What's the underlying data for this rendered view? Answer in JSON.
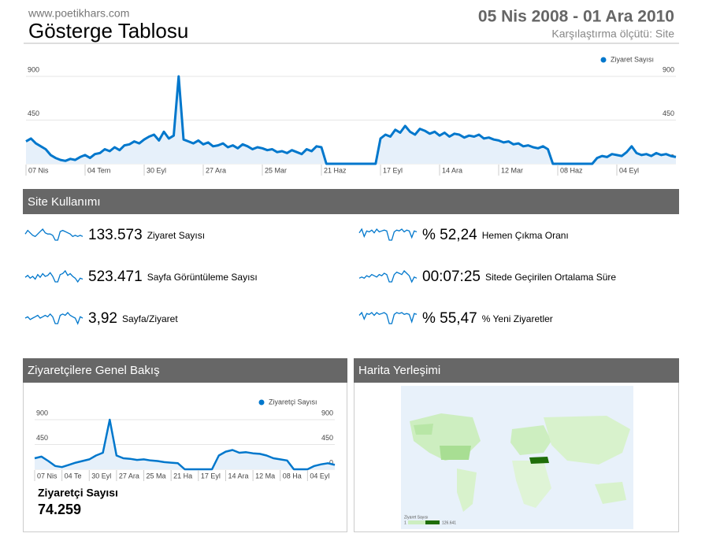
{
  "header": {
    "site": "www.poetikhars.com",
    "title": "Gösterge Tablosu",
    "date_range": "05 Nis 2008 - 01 Ara 2010",
    "comparison": "Karşılaştırma ölçütü: Site"
  },
  "chart_data": [
    {
      "type": "line",
      "ylim": [
        0,
        900
      ],
      "yticks": [
        0,
        450,
        900
      ],
      "grid": true,
      "xticks": [
        {
          "value": 0,
          "label": "07 Nis"
        },
        {
          "value": 12,
          "label": "04 Tem"
        },
        {
          "value": 24,
          "label": "30 Eyl"
        },
        {
          "value": 36,
          "label": "27 Ara"
        },
        {
          "value": 48,
          "label": "25 Mar"
        },
        {
          "value": 60,
          "label": "21 Haz"
        },
        {
          "value": 72,
          "label": "17 Eyl"
        },
        {
          "value": 84,
          "label": "14 Ara"
        },
        {
          "value": 96,
          "label": "12 Mar"
        },
        {
          "value": 108,
          "label": "08 Haz"
        },
        {
          "value": 120,
          "label": "04 Eyl"
        }
      ],
      "series": [
        {
          "name": "Ziyaret Sayısı",
          "color": "#0077cc",
          "values": [
            230,
            260,
            210,
            180,
            150,
            90,
            60,
            40,
            30,
            50,
            40,
            70,
            90,
            60,
            100,
            110,
            150,
            130,
            170,
            140,
            190,
            200,
            230,
            210,
            250,
            280,
            300,
            240,
            330,
            260,
            290,
            900,
            250,
            230,
            210,
            240,
            200,
            220,
            180,
            190,
            210,
            170,
            190,
            160,
            200,
            180,
            150,
            170,
            160,
            140,
            150,
            120,
            130,
            110,
            140,
            120,
            100,
            150,
            130,
            180,
            170,
            0,
            0,
            0,
            0,
            0,
            0,
            0,
            0,
            0,
            0,
            0,
            260,
            300,
            280,
            350,
            320,
            390,
            330,
            300,
            360,
            340,
            310,
            330,
            290,
            320,
            280,
            310,
            300,
            270,
            290,
            280,
            300,
            260,
            270,
            250,
            240,
            220,
            230,
            200,
            210,
            180,
            190,
            170,
            160,
            180,
            150,
            0,
            0,
            0,
            0,
            0,
            0,
            0,
            0,
            0,
            60,
            80,
            70,
            100,
            90,
            80,
            120,
            180,
            110,
            90,
            100,
            80,
            110,
            90,
            100,
            80,
            70
          ]
        }
      ]
    },
    {
      "type": "line",
      "ylim": [
        0,
        900
      ],
      "yticks": [
        0,
        450,
        900
      ],
      "grid": true,
      "xticks": [
        {
          "value": 0,
          "label": "07 Nis"
        },
        {
          "value": 4,
          "label": "04 Te"
        },
        {
          "value": 8,
          "label": "30 Eyl"
        },
        {
          "value": 12,
          "label": "27 Ara"
        },
        {
          "value": 16,
          "label": "25 Ma"
        },
        {
          "value": 20,
          "label": "21 Ha"
        },
        {
          "value": 24,
          "label": "17 Eyl"
        },
        {
          "value": 28,
          "label": "14 Ara"
        },
        {
          "value": 32,
          "label": "12 Ma"
        },
        {
          "value": 36,
          "label": "08 Ha"
        },
        {
          "value": 40,
          "label": "04 Eyl"
        }
      ],
      "series": [
        {
          "name": "Ziyaretçi Sayısı",
          "color": "#0077cc",
          "values": [
            200,
            230,
            150,
            60,
            40,
            80,
            120,
            150,
            180,
            250,
            300,
            900,
            250,
            200,
            190,
            170,
            180,
            160,
            150,
            130,
            120,
            110,
            0,
            0,
            0,
            0,
            0,
            250,
            320,
            350,
            300,
            310,
            290,
            280,
            250,
            200,
            180,
            160,
            0,
            0,
            0,
            60,
            90,
            110,
            80
          ]
        }
      ]
    }
  ],
  "site_usage": {
    "title": "Site Kullanımı",
    "metrics": [
      {
        "value": "133.573",
        "label": "Ziyaret Sayısı",
        "sparkline": [
          5,
          8,
          6,
          4,
          3,
          5,
          7,
          9,
          6,
          5,
          5,
          4,
          0,
          0,
          7,
          8,
          7,
          6,
          5,
          3,
          4,
          3,
          4,
          3
        ]
      },
      {
        "value": "523.471",
        "label": "Sayfa Görüntüleme Sayısı",
        "sparkline": [
          5,
          7,
          4,
          6,
          3,
          8,
          5,
          9,
          6,
          7,
          10,
          6,
          0,
          0,
          8,
          9,
          12,
          7,
          9,
          6,
          4,
          0,
          4,
          3
        ]
      },
      {
        "value": "3,92",
        "label": "Sayfa/Ziyaret",
        "sparkline": [
          4,
          5,
          3,
          4,
          5,
          6,
          4,
          5,
          6,
          5,
          7,
          5,
          0,
          0,
          6,
          7,
          6,
          8,
          6,
          5,
          4,
          0,
          5,
          4
        ]
      },
      {
        "value": "% 52,24",
        "label": "Hemen Çıkma Oranı",
        "sparkline": [
          8,
          12,
          4,
          10,
          9,
          11,
          8,
          12,
          9,
          10,
          11,
          10,
          0,
          0,
          9,
          11,
          10,
          12,
          9,
          11,
          10,
          3,
          10,
          9
        ]
      },
      {
        "value": "00:07:25",
        "label": "Sitede Geçirilen Ortalama Süre",
        "sparkline": [
          3,
          4,
          3,
          5,
          4,
          6,
          5,
          4,
          6,
          5,
          7,
          6,
          0,
          0,
          6,
          8,
          7,
          6,
          9,
          7,
          5,
          0,
          4,
          3
        ]
      },
      {
        "value": "% 55,47",
        "label": "% Yeni Ziyaretler",
        "sparkline": [
          9,
          12,
          5,
          11,
          10,
          12,
          9,
          12,
          10,
          11,
          12,
          10,
          0,
          0,
          10,
          12,
          11,
          12,
          10,
          11,
          10,
          2,
          11,
          10
        ]
      }
    ]
  },
  "visitors": {
    "title": "Ziyaretçilere Genel Bakış",
    "metric_label": "Ziyaretçi Sayısı",
    "metric_value": "74.259"
  },
  "map": {
    "title": "Harita Yerleşimi",
    "legend_title": "Ziyaret Sayısı",
    "legend_min": "1",
    "legend_max": "126.641"
  }
}
